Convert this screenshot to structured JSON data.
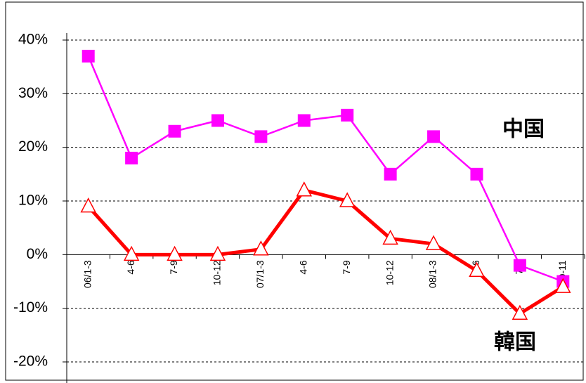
{
  "chart_data": {
    "type": "line",
    "categories": [
      "06/1-3",
      "4-6",
      "7-9",
      "10-12",
      "07/1-3",
      "4-6",
      "7-9",
      "10-12",
      "08/1-3",
      "4-6",
      "7-9",
      "10-11"
    ],
    "series": [
      {
        "name": "中国",
        "color": "#ff00ff",
        "marker": "square",
        "values": [
          37,
          18,
          23,
          25,
          22,
          25,
          26,
          15,
          22,
          15,
          -2,
          -5
        ]
      },
      {
        "name": "韓国",
        "color": "#ff0000",
        "marker": "triangle",
        "values": [
          9,
          0,
          0,
          0,
          1,
          12,
          10,
          3,
          2,
          -3,
          -11,
          -6
        ]
      }
    ],
    "ylim": [
      -20,
      40
    ],
    "yticks": [
      {
        "value": -20,
        "label": "-20%"
      },
      {
        "value": -10,
        "label": "-10%"
      },
      {
        "value": 0,
        "label": "0%"
      },
      {
        "value": 10,
        "label": "10%"
      },
      {
        "value": 20,
        "label": "20%"
      },
      {
        "value": 30,
        "label": "30%"
      },
      {
        "value": 40,
        "label": "40%"
      }
    ],
    "grid": true
  }
}
